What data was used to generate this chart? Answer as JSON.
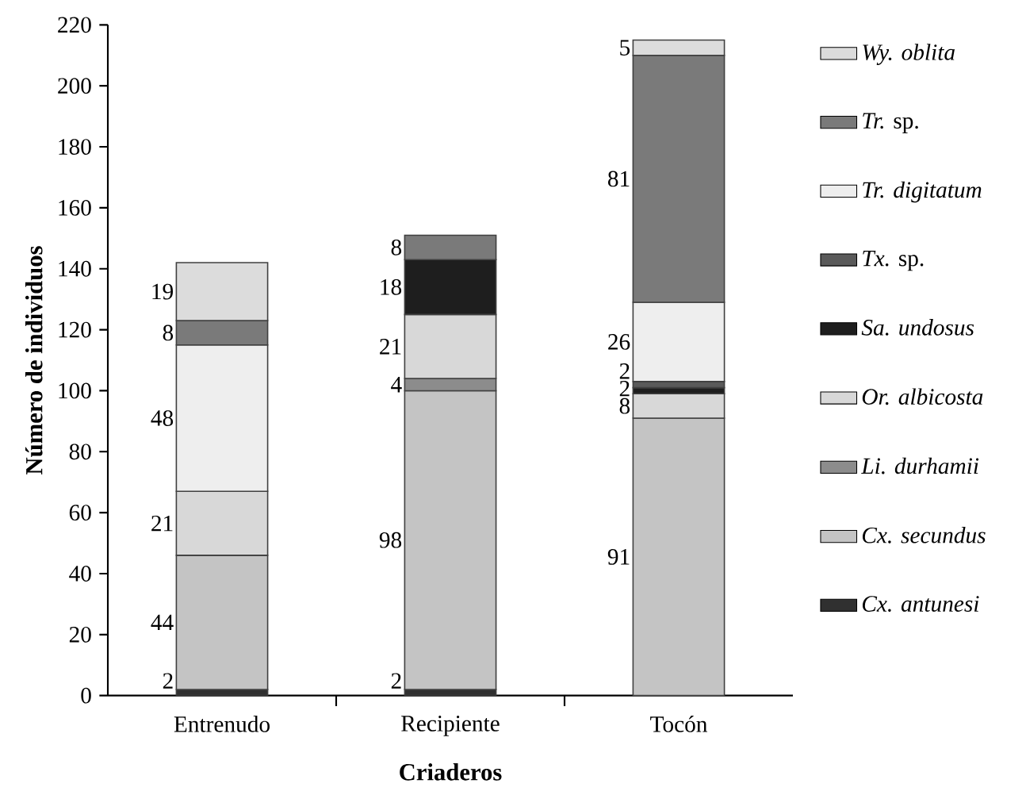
{
  "chart_data": {
    "type": "bar",
    "stacked": true,
    "xlabel": "Criaderos",
    "ylabel": "Número de individuos",
    "categories": [
      "Entrenudo",
      "Recipiente",
      "Tocón"
    ],
    "ylim": [
      0,
      220
    ],
    "yticks": [
      0,
      20,
      40,
      60,
      80,
      100,
      120,
      140,
      160,
      180,
      200,
      220
    ],
    "legend": "right",
    "data_labels": true,
    "series": [
      {
        "name": "*Cx. antunesi*",
        "color": "#303030",
        "values": [
          2,
          2,
          null
        ]
      },
      {
        "name": "*Cx. secundus*",
        "color": "#c4c4c4",
        "values": [
          44,
          98,
          91
        ]
      },
      {
        "name": "*Li. durhamii*",
        "color": "#8c8c8c",
        "values": [
          null,
          4,
          null
        ]
      },
      {
        "name": "*Or. albicosta*",
        "color": "#d8d8d8",
        "values": [
          21,
          21,
          8
        ]
      },
      {
        "name": "*Sa. undosus*",
        "color": "#1e1e1e",
        "values": [
          null,
          18,
          2
        ]
      },
      {
        "name": "*Tx.* sp.",
        "color": "#5a5a5a",
        "values": [
          null,
          null,
          2
        ]
      },
      {
        "name": "*Tr. digitatum*",
        "color": "#eeeeee",
        "values": [
          48,
          null,
          26
        ]
      },
      {
        "name": "*Tr.* sp.",
        "color": "#7a7a7a",
        "values": [
          8,
          8,
          81
        ]
      },
      {
        "name": "*Wy. oblita*",
        "color": "#dcdcdc",
        "values": [
          19,
          null,
          5
        ]
      }
    ]
  }
}
